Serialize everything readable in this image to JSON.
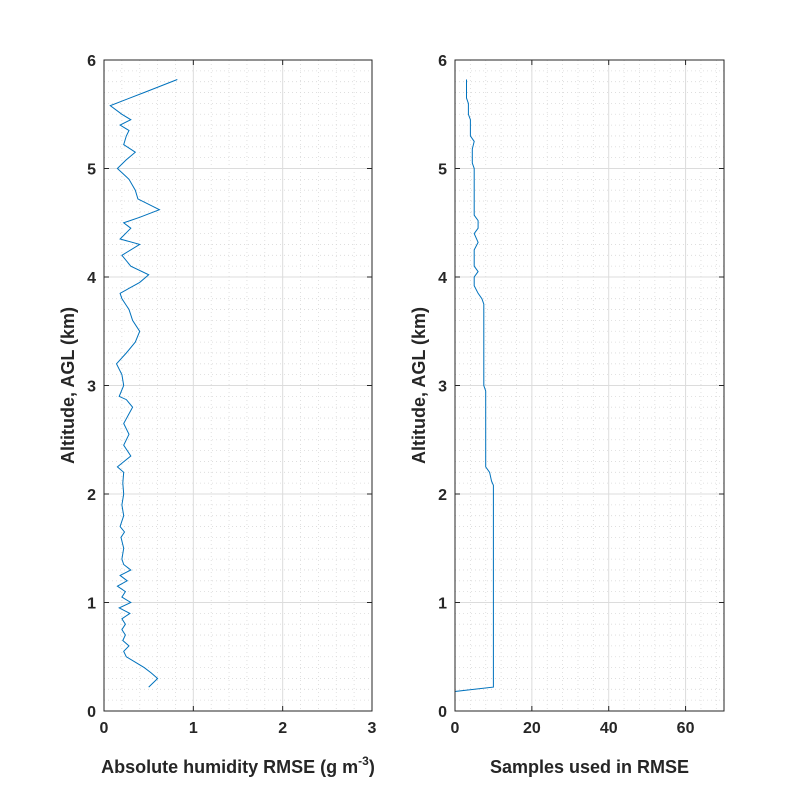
{
  "chart_data": [
    {
      "type": "line",
      "xlabel": "Absolute humidity RMSE (g m",
      "xlabel_sup": "-3",
      "xlabel_end": ")",
      "ylabel": "Altitude, AGL (km)",
      "xlim": [
        0,
        3
      ],
      "ylim": [
        0,
        6
      ],
      "xticks": [
        0,
        1,
        2,
        3
      ],
      "yticks": [
        0,
        1,
        2,
        3,
        4,
        5,
        6
      ],
      "grid": true,
      "minor_grid": true,
      "line_color": "#0072BD",
      "series": [
        {
          "points": [
            [
              0.5,
              0.22
            ],
            [
              0.6,
              0.3
            ],
            [
              0.53,
              0.35
            ],
            [
              0.45,
              0.4
            ],
            [
              0.35,
              0.45
            ],
            [
              0.25,
              0.5
            ],
            [
              0.22,
              0.55
            ],
            [
              0.28,
              0.6
            ],
            [
              0.21,
              0.65
            ],
            [
              0.24,
              0.7
            ],
            [
              0.2,
              0.75
            ],
            [
              0.24,
              0.8
            ],
            [
              0.2,
              0.85
            ],
            [
              0.29,
              0.9
            ],
            [
              0.17,
              0.95
            ],
            [
              0.3,
              1.0
            ],
            [
              0.2,
              1.05
            ],
            [
              0.24,
              1.1
            ],
            [
              0.15,
              1.15
            ],
            [
              0.26,
              1.2
            ],
            [
              0.18,
              1.25
            ],
            [
              0.3,
              1.3
            ],
            [
              0.22,
              1.35
            ],
            [
              0.2,
              1.4
            ],
            [
              0.22,
              1.5
            ],
            [
              0.19,
              1.6
            ],
            [
              0.23,
              1.65
            ],
            [
              0.18,
              1.7
            ],
            [
              0.22,
              1.8
            ],
            [
              0.2,
              1.9
            ],
            [
              0.22,
              2.0
            ],
            [
              0.21,
              2.1
            ],
            [
              0.22,
              2.2
            ],
            [
              0.15,
              2.25
            ],
            [
              0.3,
              2.35
            ],
            [
              0.22,
              2.45
            ],
            [
              0.28,
              2.55
            ],
            [
              0.22,
              2.65
            ],
            [
              0.32,
              2.8
            ],
            [
              0.25,
              2.87
            ],
            [
              0.17,
              2.9
            ],
            [
              0.22,
              3.0
            ],
            [
              0.2,
              3.1
            ],
            [
              0.14,
              3.2
            ],
            [
              0.25,
              3.3
            ],
            [
              0.35,
              3.4
            ],
            [
              0.4,
              3.5
            ],
            [
              0.32,
              3.6
            ],
            [
              0.28,
              3.7
            ],
            [
              0.2,
              3.8
            ],
            [
              0.18,
              3.85
            ],
            [
              0.4,
              3.95
            ],
            [
              0.5,
              4.02
            ],
            [
              0.3,
              4.1
            ],
            [
              0.2,
              4.2
            ],
            [
              0.4,
              4.3
            ],
            [
              0.18,
              4.35
            ],
            [
              0.3,
              4.45
            ],
            [
              0.22,
              4.5
            ],
            [
              0.4,
              4.55
            ],
            [
              0.62,
              4.62
            ],
            [
              0.38,
              4.72
            ],
            [
              0.35,
              4.8
            ],
            [
              0.28,
              4.9
            ],
            [
              0.15,
              5.0
            ],
            [
              0.25,
              5.08
            ],
            [
              0.35,
              5.15
            ],
            [
              0.22,
              5.22
            ],
            [
              0.25,
              5.3
            ],
            [
              0.28,
              5.35
            ],
            [
              0.18,
              5.4
            ],
            [
              0.3,
              5.45
            ],
            [
              0.2,
              5.5
            ],
            [
              0.07,
              5.58
            ],
            [
              0.45,
              5.7
            ],
            [
              0.82,
              5.82
            ]
          ]
        }
      ]
    },
    {
      "type": "line",
      "xlabel": "Samples used in RMSE",
      "ylabel": "Altitude, AGL (km)",
      "xlim": [
        0,
        70
      ],
      "ylim": [
        0,
        6
      ],
      "xticks": [
        0,
        20,
        40,
        60
      ],
      "yticks": [
        0,
        1,
        2,
        3,
        4,
        5,
        6
      ],
      "grid": true,
      "minor_grid": true,
      "line_color": "#0072BD",
      "series": [
        {
          "points": [
            [
              0,
              0
            ],
            [
              0,
              0.18
            ],
            [
              10,
              0.22
            ],
            [
              10,
              2.08
            ],
            [
              9.5,
              2.12
            ],
            [
              9,
              2.2
            ],
            [
              8,
              2.25
            ],
            [
              8,
              2.95
            ],
            [
              7.5,
              3.0
            ],
            [
              7.5,
              3.75
            ],
            [
              7,
              3.8
            ],
            [
              6,
              3.85
            ],
            [
              5,
              3.92
            ],
            [
              5,
              4.0
            ],
            [
              6,
              4.05
            ],
            [
              5,
              4.1
            ],
            [
              5,
              4.25
            ],
            [
              6,
              4.32
            ],
            [
              5,
              4.4
            ],
            [
              6,
              4.45
            ],
            [
              6,
              4.52
            ],
            [
              5,
              4.57
            ],
            [
              5,
              5.0
            ],
            [
              4.5,
              5.05
            ],
            [
              4.5,
              5.18
            ],
            [
              5,
              5.25
            ],
            [
              4,
              5.3
            ],
            [
              4,
              5.45
            ],
            [
              3.5,
              5.5
            ],
            [
              3.5,
              5.6
            ],
            [
              3,
              5.65
            ],
            [
              3,
              5.82
            ]
          ]
        }
      ]
    }
  ]
}
